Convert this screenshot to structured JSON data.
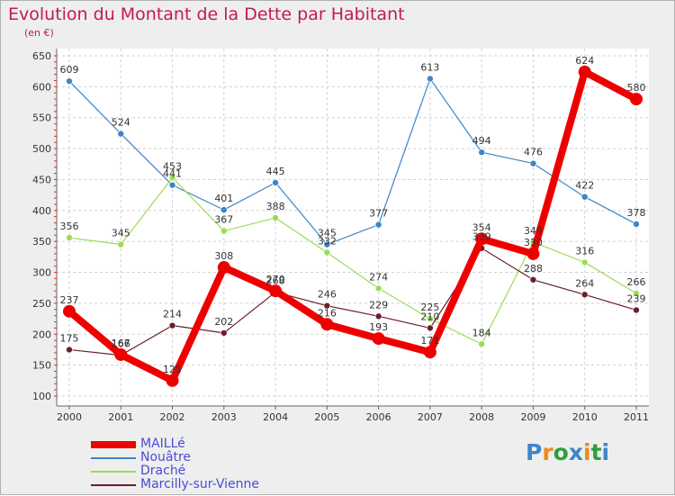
{
  "chart_data": {
    "type": "line",
    "title": "Evolution du Montant de la Dette par Habitant",
    "subtitle": "(en €)",
    "categories": [
      "2000",
      "2001",
      "2002",
      "2003",
      "2004",
      "2005",
      "2006",
      "2007",
      "2008",
      "2009",
      "2010",
      "2011"
    ],
    "ylim": [
      100,
      650
    ],
    "yticks": [
      100,
      150,
      200,
      250,
      300,
      350,
      400,
      450,
      500,
      550,
      600,
      650
    ],
    "grid": true,
    "legend_position": "bottom-left",
    "series": [
      {
        "name": "MAILLé",
        "color": "#ee0000",
        "values": [
          237,
          167,
          125,
          308,
          270,
          216,
          193,
          171,
          354,
          330,
          624,
          580
        ]
      },
      {
        "name": "Nouâtre",
        "color": "#3d85c6",
        "values": [
          609,
          524,
          441,
          401,
          445,
          345,
          377,
          613,
          494,
          476,
          422,
          378
        ]
      },
      {
        "name": "Draché",
        "color": "#99dd55",
        "values": [
          356,
          345,
          453,
          367,
          388,
          332,
          274,
          225,
          184,
          349,
          316,
          266
        ]
      },
      {
        "name": "Marcilly-sur-Vienne",
        "color": "#6a1f2a",
        "values": [
          175,
          166,
          214,
          202,
          268,
          246,
          229,
          210,
          339,
          288,
          264,
          239
        ]
      }
    ]
  },
  "brand": {
    "letters": [
      "P",
      "r",
      "o",
      "x",
      "i",
      "t",
      "i"
    ],
    "colors": [
      "#3d85c6",
      "#ef8a1d",
      "#2e9e3e",
      "#3d85c6",
      "#ef8a1d",
      "#2e9e3e",
      "#3d85c6"
    ]
  }
}
